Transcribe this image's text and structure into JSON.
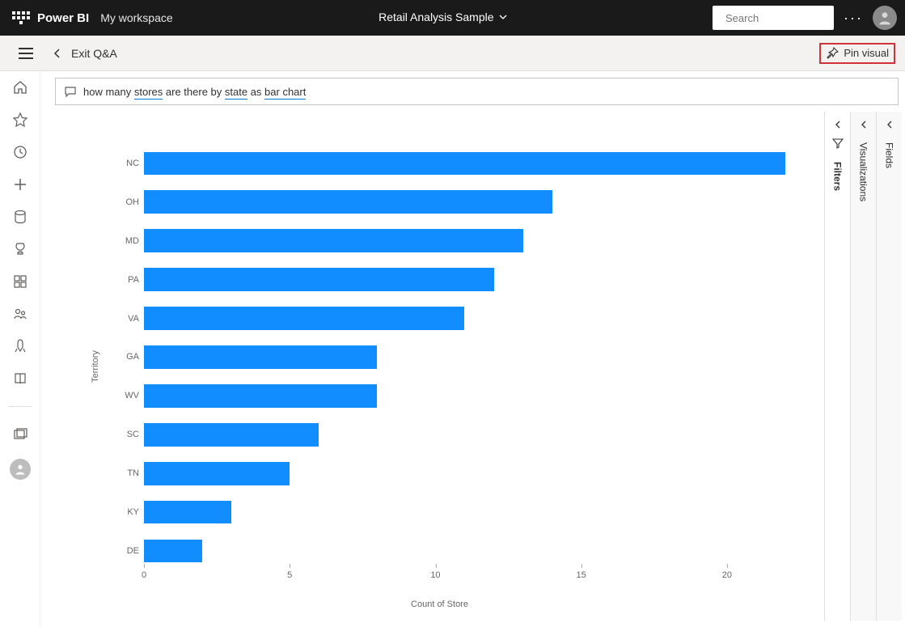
{
  "header": {
    "brand": "Power BI",
    "workspace": "My workspace",
    "report_title": "Retail Analysis Sample",
    "search_placeholder": "Search"
  },
  "subheader": {
    "exit_label": "Exit Q&A",
    "pin_label": "Pin visual"
  },
  "qa": {
    "prefix": "how many ",
    "term1": "stores",
    "mid1": " are there by ",
    "term2": "state",
    "mid2": " as ",
    "term3": "bar chart"
  },
  "panes": {
    "filters": "Filters",
    "visualizations": "Visualizations",
    "fields": "Fields"
  },
  "chart": {
    "type": "bar",
    "y_axis_label": "Territory",
    "x_axis_label": "Count of Store",
    "bar_color": "#118dff",
    "background_color": "#ffffff",
    "label_fontsize": 11,
    "label_color": "#666666",
    "xlim": [
      0,
      22.5
    ],
    "xticks": [
      0,
      5,
      10,
      15,
      20
    ],
    "bar_height_ratio": 0.6,
    "categories": [
      "NC",
      "OH",
      "MD",
      "PA",
      "VA",
      "GA",
      "WV",
      "SC",
      "TN",
      "KY",
      "DE"
    ],
    "values": [
      22,
      14,
      13,
      12,
      11,
      8,
      8,
      6,
      5,
      3,
      2
    ]
  },
  "colors": {
    "header_bg": "#1a1a1a",
    "subheader_bg": "#f3f2f1",
    "highlight_border": "#d13438",
    "link_underline": "#0078d4"
  }
}
